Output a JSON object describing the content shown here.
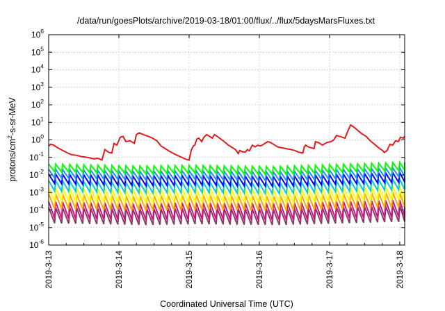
{
  "chart_data": {
    "type": "line",
    "title": "/data/run/goesPlots/archive/2019-03-18/01:00/flux/../flux/5daysMarsFluxes.txt",
    "xlabel": "Coordinated Universal Time (UTC)",
    "ylabel_main": "protons/cm",
    "ylabel_sup": "2",
    "ylabel_rest": "-s-sr-MeV",
    "x_unit": "days since 2019-03-13 00:00 UTC",
    "xlim": [
      0,
      5.07
    ],
    "ylim": [
      -6,
      6
    ],
    "y_scale": "log10",
    "grid": true,
    "x_ticks": [
      {
        "value": 0,
        "label": "2019-3-13"
      },
      {
        "value": 1,
        "label": "2019-3-14"
      },
      {
        "value": 2,
        "label": "2019-3-15"
      },
      {
        "value": 3,
        "label": "2019-3-16"
      },
      {
        "value": 4,
        "label": "2019-3-17"
      },
      {
        "value": 5,
        "label": "2019-3-18"
      }
    ],
    "y_ticks": [
      {
        "exp": -6,
        "base": "10",
        "sup": "-6"
      },
      {
        "exp": -5,
        "base": "10",
        "sup": "-5"
      },
      {
        "exp": -4,
        "base": "10",
        "sup": "-4"
      },
      {
        "exp": -3,
        "base": "10",
        "sup": "-3"
      },
      {
        "exp": -2,
        "base": "10",
        "sup": "-2"
      },
      {
        "exp": -1,
        "base": "10",
        "sup": "-1"
      },
      {
        "exp": 0,
        "base": "10",
        "sup": "0"
      },
      {
        "exp": 1,
        "base": "10",
        "sup": "1"
      },
      {
        "exp": 2,
        "base": "10",
        "sup": "2"
      },
      {
        "exp": 3,
        "base": "10",
        "sup": "3"
      },
      {
        "exp": 4,
        "base": "10",
        "sup": "4"
      },
      {
        "exp": 5,
        "base": "10",
        "sup": "5"
      },
      {
        "exp": 6,
        "base": "10",
        "sup": "6"
      }
    ],
    "series": [
      {
        "color": "#e41a1c",
        "values_log10": [
          [
            0.0,
            -0.35
          ],
          [
            0.03,
            -0.25
          ],
          [
            0.07,
            -0.3
          ],
          [
            0.13,
            -0.45
          ],
          [
            0.2,
            -0.6
          ],
          [
            0.27,
            -0.75
          ],
          [
            0.33,
            -0.85
          ],
          [
            0.4,
            -0.88
          ],
          [
            0.46,
            -0.95
          ],
          [
            0.52,
            -0.98
          ],
          [
            0.58,
            -1.02
          ],
          [
            0.64,
            -1.08
          ],
          [
            0.7,
            -1.05
          ],
          [
            0.76,
            -1.15
          ],
          [
            0.8,
            -0.55
          ],
          [
            0.86,
            -0.72
          ],
          [
            0.9,
            -0.75
          ],
          [
            0.93,
            -0.2
          ],
          [
            0.97,
            -0.3
          ],
          [
            1.02,
            0.15
          ],
          [
            1.06,
            0.2
          ],
          [
            1.1,
            -0.1
          ],
          [
            1.16,
            -0.05
          ],
          [
            1.22,
            -0.2
          ],
          [
            1.25,
            0.3
          ],
          [
            1.29,
            0.4
          ],
          [
            1.35,
            0.3
          ],
          [
            1.42,
            0.2
          ],
          [
            1.48,
            0.1
          ],
          [
            1.54,
            -0.05
          ],
          [
            1.6,
            -0.35
          ],
          [
            1.66,
            -0.5
          ],
          [
            1.72,
            -0.65
          ],
          [
            1.78,
            -0.78
          ],
          [
            1.84,
            -0.9
          ],
          [
            1.9,
            -1.0
          ],
          [
            1.95,
            -1.1
          ],
          [
            2.0,
            -1.15
          ],
          [
            2.03,
            -0.6
          ],
          [
            2.06,
            -0.35
          ],
          [
            2.08,
            -0.3
          ],
          [
            2.11,
            0.05
          ],
          [
            2.14,
            0.1
          ],
          [
            2.18,
            -0.1
          ],
          [
            2.21,
            0.15
          ],
          [
            2.25,
            0.3
          ],
          [
            2.29,
            0.2
          ],
          [
            2.33,
            0.1
          ],
          [
            2.36,
            0.3
          ],
          [
            2.4,
            0.2
          ],
          [
            2.45,
            0.05
          ],
          [
            2.5,
            -0.1
          ],
          [
            2.56,
            -0.3
          ],
          [
            2.62,
            -0.45
          ],
          [
            2.66,
            -0.55
          ],
          [
            2.7,
            -0.78
          ],
          [
            2.72,
            -0.6
          ],
          [
            2.76,
            -0.68
          ],
          [
            2.8,
            -0.7
          ],
          [
            2.83,
            -0.55
          ],
          [
            2.86,
            -0.62
          ],
          [
            2.9,
            -0.3
          ],
          [
            2.94,
            -0.4
          ],
          [
            2.98,
            -0.3
          ],
          [
            3.01,
            -0.35
          ],
          [
            3.04,
            -0.3
          ],
          [
            3.08,
            -0.2
          ],
          [
            3.12,
            -0.1
          ],
          [
            3.16,
            -0.15
          ],
          [
            3.2,
            -0.25
          ],
          [
            3.26,
            -0.4
          ],
          [
            3.32,
            -0.45
          ],
          [
            3.38,
            -0.5
          ],
          [
            3.45,
            -0.55
          ],
          [
            3.5,
            -0.6
          ],
          [
            3.56,
            -0.7
          ],
          [
            3.62,
            -0.75
          ],
          [
            3.64,
            -0.4
          ],
          [
            3.66,
            -0.3
          ],
          [
            3.7,
            -0.4
          ],
          [
            3.74,
            -0.45
          ],
          [
            3.78,
            -0.5
          ],
          [
            3.8,
            -0.1
          ],
          [
            3.84,
            -0.15
          ],
          [
            3.9,
            -0.3
          ],
          [
            3.96,
            -0.15
          ],
          [
            4.02,
            -0.1
          ],
          [
            4.06,
            0.0
          ],
          [
            4.1,
            0.25
          ],
          [
            4.14,
            0.2
          ],
          [
            4.18,
            0.15
          ],
          [
            4.22,
            0.1
          ],
          [
            4.26,
            0.5
          ],
          [
            4.3,
            0.85
          ],
          [
            4.34,
            0.75
          ],
          [
            4.4,
            0.55
          ],
          [
            4.46,
            0.35
          ],
          [
            4.52,
            0.2
          ],
          [
            4.58,
            -0.05
          ],
          [
            4.64,
            -0.25
          ],
          [
            4.7,
            -0.45
          ],
          [
            4.76,
            -0.62
          ],
          [
            4.78,
            -0.72
          ],
          [
            4.82,
            -0.6
          ],
          [
            4.86,
            -0.25
          ],
          [
            4.9,
            -0.3
          ],
          [
            4.94,
            -0.05
          ],
          [
            4.98,
            -0.1
          ],
          [
            5.01,
            0.15
          ],
          [
            5.05,
            0.1
          ],
          [
            5.07,
            0.2
          ]
        ]
      },
      {
        "color": "#00ff00",
        "base": -1.62,
        "amp": 0.45,
        "trend": [
          [
            0,
            0
          ],
          [
            1.3,
            -0.12
          ],
          [
            2,
            -0.08
          ],
          [
            3.2,
            -0.15
          ],
          [
            5.07,
            0.1
          ]
        ]
      },
      {
        "color": "#1e90ff",
        "base": -1.95,
        "amp": 0.5,
        "trend": [
          [
            0,
            0
          ],
          [
            1.3,
            -0.12
          ],
          [
            2,
            -0.08
          ],
          [
            3.2,
            -0.15
          ],
          [
            5.07,
            0.1
          ]
        ]
      },
      {
        "color": "#0000ff",
        "base": -2.25,
        "amp": 0.55,
        "trend": [
          [
            0,
            0
          ],
          [
            1.3,
            -0.12
          ],
          [
            2,
            -0.08
          ],
          [
            3.2,
            -0.15
          ],
          [
            5.07,
            0.1
          ]
        ]
      },
      {
        "color": "#00ced1",
        "base": -2.65,
        "amp": 0.6,
        "trend": [
          [
            0,
            0
          ],
          [
            1.3,
            -0.12
          ],
          [
            2,
            -0.08
          ],
          [
            3.2,
            -0.15
          ],
          [
            5.07,
            0.1
          ]
        ]
      },
      {
        "color": "#ffff00",
        "base": -3.15,
        "amp": 0.75,
        "trend": [
          [
            0,
            0
          ],
          [
            1.3,
            -0.1
          ],
          [
            2,
            -0.05
          ],
          [
            3.2,
            -0.1
          ],
          [
            5.07,
            0.1
          ]
        ]
      },
      {
        "color": "#ffa500",
        "base": -3.55,
        "amp": 0.85,
        "trend": [
          [
            0,
            0
          ],
          [
            1.3,
            -0.1
          ],
          [
            2,
            -0.05
          ],
          [
            3.2,
            -0.1
          ],
          [
            5.07,
            0.1
          ]
        ]
      },
      {
        "color": "#c71585",
        "base": -4.05,
        "amp": 0.95,
        "trend": [
          [
            0,
            0
          ],
          [
            1.3,
            -0.1
          ],
          [
            2,
            -0.05
          ],
          [
            3.2,
            -0.1
          ],
          [
            5.07,
            0.1
          ]
        ]
      },
      {
        "color": "#8b3a62",
        "base": -4.35,
        "amp": 0.9,
        "trend": [
          [
            0,
            0
          ],
          [
            1.3,
            -0.1
          ],
          [
            2,
            -0.05
          ],
          [
            3.2,
            -0.1
          ],
          [
            5.07,
            0.1
          ]
        ]
      }
    ],
    "sawtooth_period_days": 0.1
  }
}
